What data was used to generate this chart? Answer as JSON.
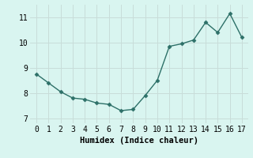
{
  "x": [
    0,
    1,
    2,
    3,
    4,
    5,
    6,
    7,
    8,
    9,
    10,
    11,
    12,
    13,
    14,
    15,
    16,
    17
  ],
  "y": [
    8.75,
    8.4,
    8.05,
    7.8,
    7.75,
    7.6,
    7.55,
    7.3,
    7.35,
    7.9,
    8.5,
    9.85,
    9.95,
    10.1,
    10.8,
    10.4,
    11.15,
    10.2
  ],
  "line_color": "#2d7068",
  "marker": "D",
  "marker_size": 2.5,
  "xlabel": "Humidex (Indice chaleur)",
  "xlim": [
    -0.5,
    17.5
  ],
  "ylim": [
    6.8,
    11.5
  ],
  "yticks": [
    7,
    8,
    9,
    10,
    11
  ],
  "xticks": [
    0,
    1,
    2,
    3,
    4,
    5,
    6,
    7,
    8,
    9,
    10,
    11,
    12,
    13,
    14,
    15,
    16,
    17
  ],
  "bg_color": "#d9f5f0",
  "grid_color": "#c8ddd9",
  "label_fontsize": 7.5,
  "tick_fontsize": 7
}
